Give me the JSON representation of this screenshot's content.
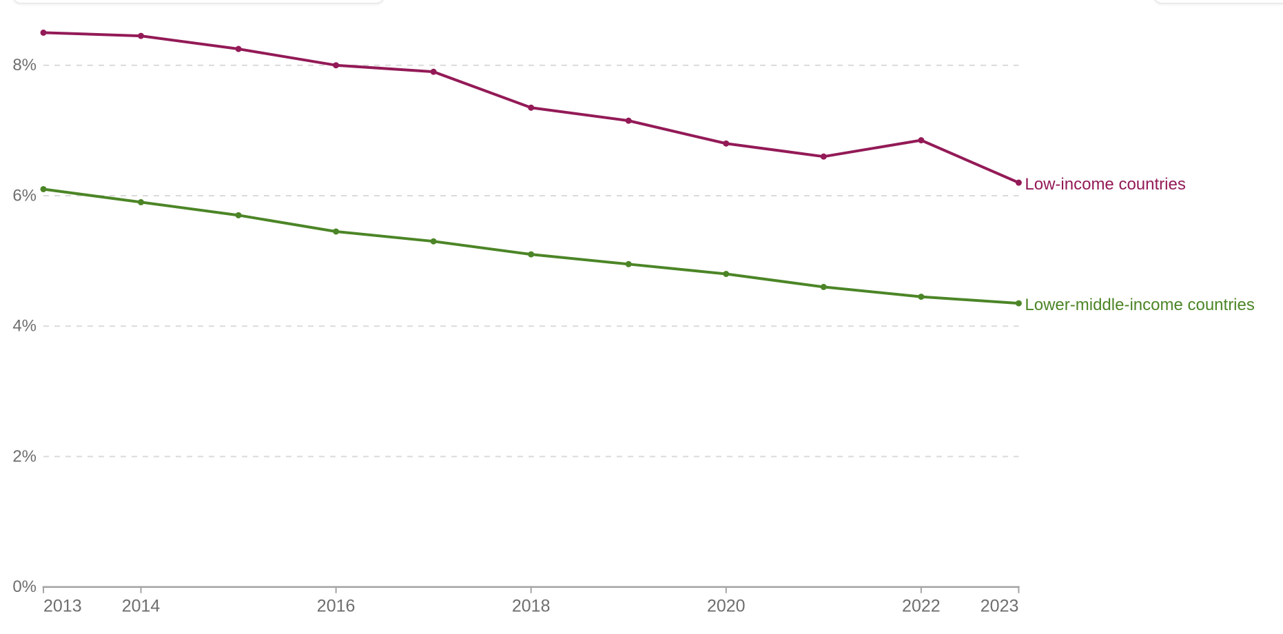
{
  "style": {
    "background": "#FFFFFF",
    "gridline_color": "#DADADA",
    "axis_color": "#A3A3A3",
    "axis_text_color": "#6E6E6E"
  },
  "top_controls": {
    "left_box_visible": true,
    "right_box_visible": true
  },
  "chart_data": {
    "type": "line",
    "x": [
      2013,
      2014,
      2015,
      2016,
      2017,
      2018,
      2019,
      2020,
      2021,
      2022,
      2023
    ],
    "series": [
      {
        "name": "Low-income countries",
        "color": "#931A57",
        "values": [
          8.5,
          8.45,
          8.25,
          8.0,
          7.9,
          7.35,
          7.15,
          6.8,
          6.6,
          6.85,
          6.2
        ]
      },
      {
        "name": "Lower-middle-income countries",
        "color": "#4C8527",
        "values": [
          6.1,
          5.9,
          5.7,
          5.45,
          5.3,
          5.1,
          4.95,
          4.8,
          4.6,
          4.45,
          4.35
        ]
      }
    ],
    "title": "",
    "xlabel": "",
    "ylabel": "",
    "xlim": [
      2013,
      2023
    ],
    "ylim": [
      0,
      9
    ],
    "y_ticks": [
      {
        "value": 0,
        "label": "0%"
      },
      {
        "value": 2,
        "label": "2%"
      },
      {
        "value": 4,
        "label": "4%"
      },
      {
        "value": 6,
        "label": "6%"
      },
      {
        "value": 8,
        "label": "8%"
      }
    ],
    "x_ticks": [
      {
        "year": 2013,
        "label": "2013"
      },
      {
        "year": 2014,
        "label": "2014"
      },
      {
        "year": 2016,
        "label": "2016"
      },
      {
        "year": 2018,
        "label": "2018"
      },
      {
        "year": 2020,
        "label": "2020"
      },
      {
        "year": 2022,
        "label": "2022"
      },
      {
        "year": 2023,
        "label": "2023"
      }
    ],
    "grid": "horizontal-dashed",
    "legend_position": "end-of-line-labels"
  }
}
